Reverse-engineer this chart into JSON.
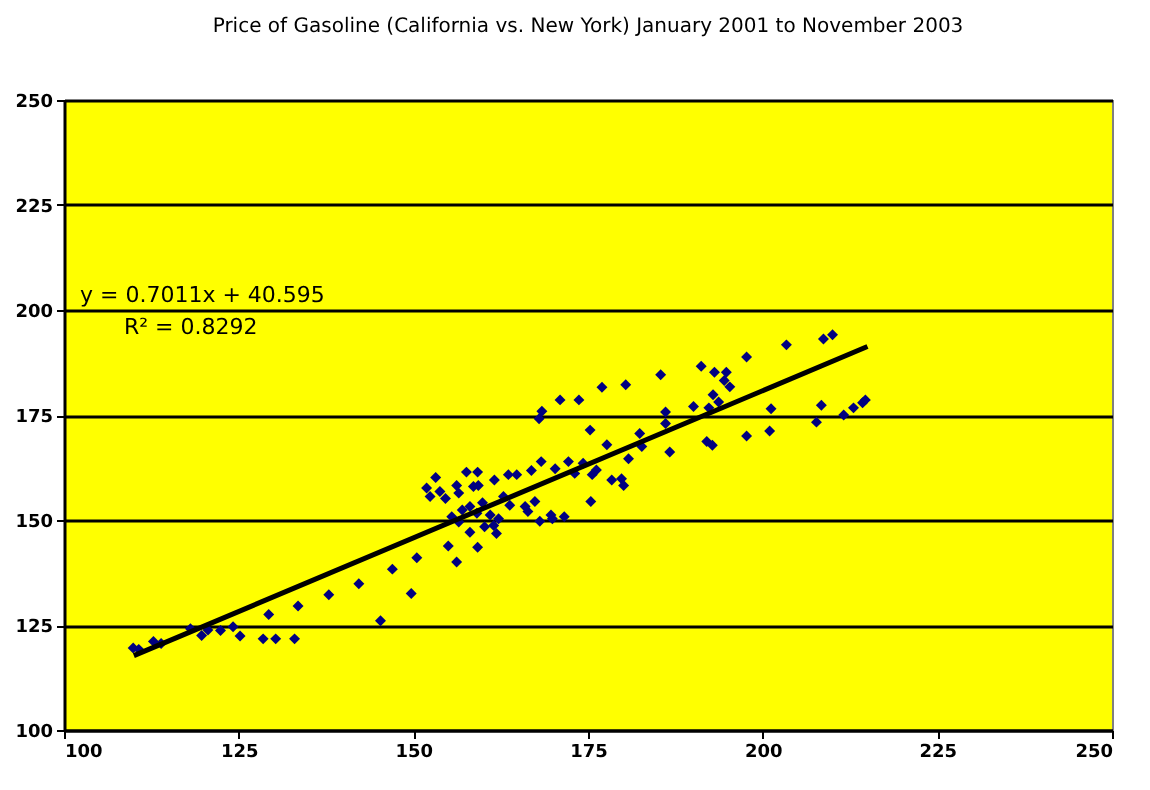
{
  "chart_data": {
    "type": "scatter",
    "title": "Price of  Gasoline (California vs. New York)  January 2001 to November 2003",
    "xlim": [
      100,
      250
    ],
    "xticks": [
      100,
      125,
      150,
      175,
      200,
      225,
      250
    ],
    "ylim": [
      100,
      250
    ],
    "yticks": [
      100,
      125,
      150,
      175,
      200,
      225,
      250
    ],
    "grid": "y",
    "marker": "diamond",
    "annotations": [
      "y = 0.7011x + 40.595",
      "R² = 0.8292"
    ],
    "series": [
      {
        "color": "#000080",
        "x": [
          109.9,
          110.7,
          112.8,
          113.9,
          118.1,
          119.7,
          120.6,
          122.4,
          124.2,
          125.2,
          128.5,
          130.3,
          129.3,
          133.0,
          133.5,
          137.9,
          142.2,
          145.3,
          147.0,
          149.7,
          150.5,
          155.0,
          156.2,
          159.2,
          153.2,
          151.9,
          152.4,
          153.8,
          154.6,
          156.2,
          156.5,
          157.6,
          159.2,
          158.6,
          159.3,
          155.5,
          156.5,
          157.0,
          158.1,
          159.1,
          159.9,
          158.1,
          161.0,
          160.2,
          161.5,
          162.2,
          161.9,
          161.6,
          162.9,
          163.6,
          164.8,
          163.8,
          166.0,
          166.4,
          166.9,
          167.4,
          168.3,
          168.1,
          169.7,
          169.9,
          171.6,
          170.3,
          172.2,
          173.1,
          174.3,
          176.2,
          175.6,
          175.4,
          175.3,
          177.7,
          168.4,
          168.0,
          171.0,
          173.7,
          178.4,
          179.8,
          180.1,
          180.8,
          182.4,
          182.7,
          186.1,
          186.1,
          186.7,
          190.1,
          192.0,
          192.8,
          192.3,
          193.7,
          177.0,
          180.4,
          185.4,
          191.2,
          193.1,
          194.8,
          194.5,
          195.3,
          197.7,
          203.4,
          208.7,
          210.0,
          192.9,
          197.7,
          201.0,
          201.2,
          207.7,
          208.4,
          211.6,
          213.0,
          214.3,
          214.7
        ],
        "values": [
          119.5,
          119.2,
          121.1,
          120.6,
          124.1,
          122.5,
          123.8,
          123.7,
          124.6,
          122.4,
          121.7,
          121.7,
          127.5,
          121.7,
          129.5,
          132.2,
          134.8,
          126.0,
          138.3,
          132.5,
          141.0,
          143.8,
          140.0,
          143.5,
          160.1,
          157.6,
          155.6,
          156.8,
          155.1,
          158.2,
          156.4,
          161.4,
          161.4,
          158.0,
          158.2,
          150.8,
          149.5,
          152.4,
          153.2,
          151.6,
          154.1,
          147.1,
          151.2,
          148.4,
          148.7,
          150.3,
          146.8,
          159.5,
          155.6,
          160.8,
          160.8,
          153.5,
          153.2,
          152.0,
          161.8,
          154.4,
          163.9,
          149.7,
          151.2,
          150.3,
          150.8,
          162.2,
          163.9,
          161.1,
          163.5,
          161.9,
          160.8,
          154.4,
          171.4,
          167.9,
          175.9,
          174.1,
          178.6,
          178.6,
          159.5,
          159.8,
          158.2,
          164.6,
          170.6,
          167.5,
          175.7,
          173.0,
          166.2,
          177.0,
          168.7,
          167.8,
          176.7,
          178.1,
          181.6,
          182.2,
          184.6,
          186.6,
          185.2,
          185.2,
          183.2,
          181.7,
          188.8,
          191.7,
          193.1,
          194.1,
          179.8,
          170.0,
          171.2,
          176.5,
          173.3,
          177.3,
          175.0,
          176.7,
          177.9,
          178.6
        ]
      },
      {
        "type": "line",
        "marker": "none",
        "color": "#000000",
        "x": [
          110,
          215
        ],
        "values": [
          117.7,
          191.3
        ]
      }
    ]
  }
}
